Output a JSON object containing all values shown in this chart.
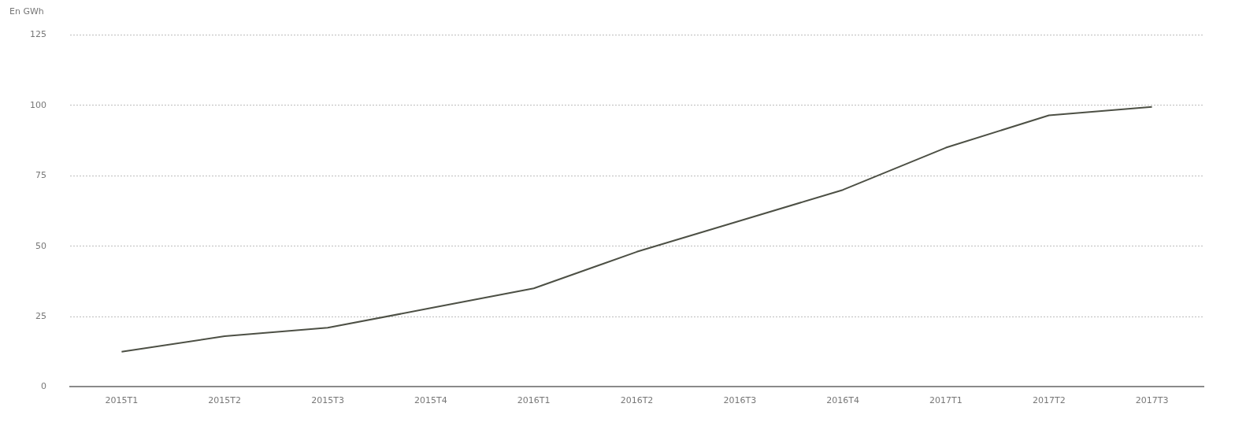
{
  "chart_data": {
    "type": "line",
    "ylabel": "En GWh",
    "categories": [
      "2015T1",
      "2015T2",
      "2015T3",
      "2015T4",
      "2016T1",
      "2016T2",
      "2016T3",
      "2016T4",
      "2017T1",
      "2017T2",
      "2017T3"
    ],
    "series": [
      {
        "color": "#4d5045",
        "values": [
          12.5,
          18,
          21,
          28,
          35,
          48,
          59,
          70,
          85,
          96.5,
          99.5
        ]
      }
    ],
    "ylim": [
      0,
      125
    ],
    "yticks": [
      0,
      25,
      50,
      75,
      100,
      125
    ],
    "grid": "y",
    "legend": false,
    "marker": "none",
    "line_style": "solid"
  }
}
